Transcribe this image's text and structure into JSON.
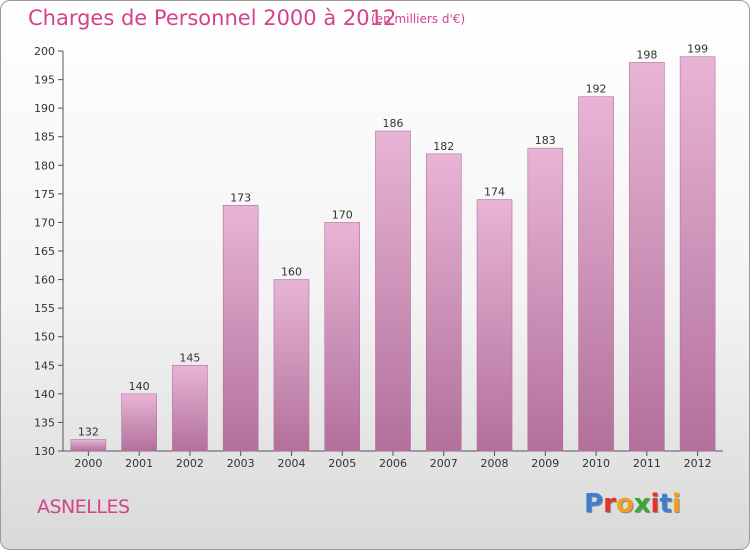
{
  "header": {
    "title": "Charges de Personnel 2000 à 2012",
    "subtitle": "(en milliers d'€)"
  },
  "commune": "ASNELLES",
  "logo": {
    "text": "Proxiti",
    "letter_colors": [
      "#3b7fd0",
      "#e5332a",
      "#f0a01e",
      "#3aa935",
      "#e5332a",
      "#3b7fd0",
      "#f0a01e"
    ]
  },
  "colors": {
    "bar_light": "#e8b4d6",
    "bar_dark": "#b2709b",
    "title": "#d4428a"
  },
  "chart_data": {
    "type": "bar",
    "title": "Charges de Personnel 2000 à 2012",
    "subtitle": "(en milliers d'€)",
    "categories": [
      "2000",
      "2001",
      "2002",
      "2003",
      "2004",
      "2005",
      "2006",
      "2007",
      "2008",
      "2009",
      "2010",
      "2011",
      "2012"
    ],
    "values": [
      132,
      140,
      145,
      173,
      160,
      170,
      186,
      182,
      174,
      183,
      192,
      198,
      199
    ],
    "ylim": [
      130,
      200
    ],
    "yticks": [
      130,
      135,
      140,
      145,
      150,
      155,
      160,
      165,
      170,
      175,
      180,
      185,
      190,
      195,
      200
    ],
    "grid": false,
    "legend": "none"
  }
}
